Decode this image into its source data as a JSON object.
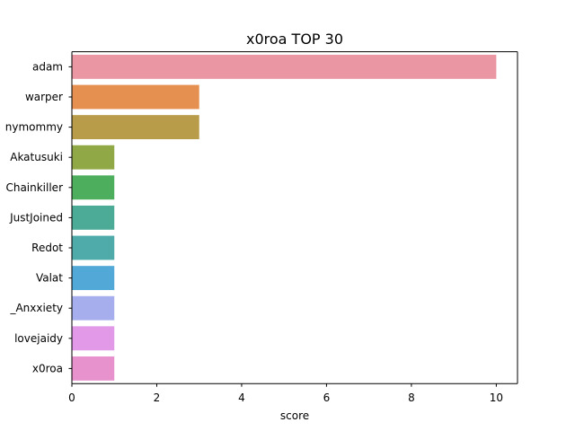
{
  "chart_data": {
    "type": "bar",
    "orientation": "horizontal",
    "title": "x0roa TOP 30",
    "xlabel": "score",
    "ylabel": "",
    "xlim": [
      0,
      10.5
    ],
    "x_ticks": [
      0,
      2,
      4,
      6,
      8,
      10
    ],
    "grid": false,
    "legend": "none",
    "categories": [
      "adam",
      "warper",
      "nymommy",
      "Akatusuki",
      "Chainkiller",
      "JustJoined",
      "Redot",
      "Valat",
      "_Anxxiety",
      "lovejaidy",
      "x0roa"
    ],
    "values": [
      10,
      3,
      3,
      1,
      1,
      1,
      1,
      1,
      1,
      1,
      1
    ],
    "colors": [
      "#ea96a3",
      "#e59050",
      "#b89c49",
      "#91a846",
      "#4dae5e",
      "#4cab97",
      "#4faaaa",
      "#52a8d6",
      "#a6aeed",
      "#e199e8",
      "#e892cd"
    ]
  }
}
